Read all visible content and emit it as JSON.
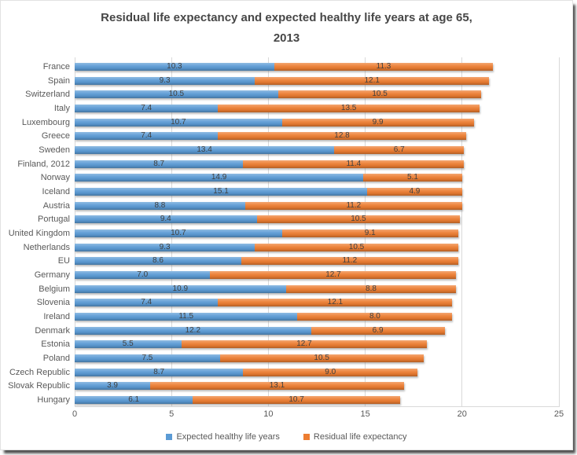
{
  "header": {
    "title_line1": "Residual life expectancy and expected healthy life years at age 65,",
    "title_line2": "2013"
  },
  "chart_data": {
    "type": "bar",
    "orientation": "horizontal",
    "stacked": true,
    "title": "Residual life expectancy and expected healthy life years at age 65, 2013",
    "categories": [
      "France",
      "Spain",
      "Switzerland",
      "Italy",
      "Luxembourg",
      "Greece",
      "Sweden",
      "Finland, 2012",
      "Norway",
      "Iceland",
      "Austria",
      "Portugal",
      "United Kingdom",
      "Netherlands",
      "EU",
      "Germany",
      "Belgium",
      "Slovenia",
      "Ireland",
      "Denmark",
      "Estonia",
      "Poland",
      "Czech Republic",
      "Slovak Republic",
      "Hungary"
    ],
    "series": [
      {
        "name": "Expected healthy life years",
        "color": "#5B9BD5",
        "values": [
          10.3,
          9.3,
          10.5,
          7.4,
          10.7,
          7.4,
          13.4,
          8.7,
          14.9,
          15.1,
          8.8,
          9.4,
          10.7,
          9.3,
          8.6,
          7.0,
          10.9,
          7.4,
          11.5,
          12.2,
          5.5,
          7.5,
          8.7,
          3.9,
          6.1
        ]
      },
      {
        "name": "Residual life expectancy",
        "color": "#ED7D31",
        "values": [
          11.3,
          12.1,
          10.5,
          13.5,
          9.9,
          12.8,
          6.7,
          11.4,
          5.1,
          4.9,
          11.2,
          10.5,
          9.1,
          10.5,
          11.2,
          12.7,
          8.8,
          12.1,
          8.0,
          6.9,
          12.7,
          10.5,
          9.0,
          13.1,
          10.7
        ]
      }
    ],
    "xlim": [
      0,
      25
    ],
    "x_ticks": [
      0,
      5,
      10,
      15,
      20,
      25
    ],
    "grid": "vertical",
    "value_labels": "inside-center",
    "value_label_decimals": 1,
    "legend_position": "bottom",
    "text_color": "#595959",
    "gridline_color": "#d9d9d9"
  }
}
